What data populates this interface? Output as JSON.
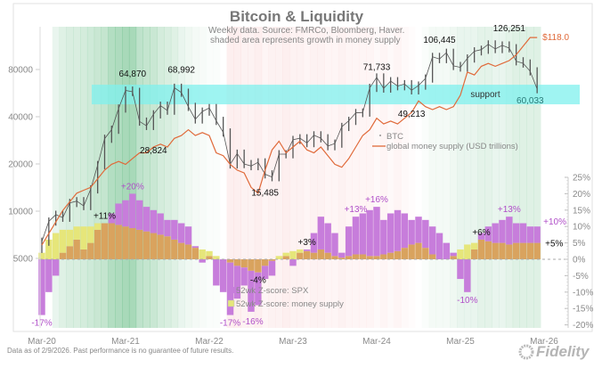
{
  "chart_data": {
    "type": "bar+line",
    "title": "Bitcoin & Liquidity",
    "subtitle": [
      "Weekly data.  Source: FMRCo, Bloomberg, Haver.",
      "shaded area represents growth in money supply"
    ],
    "footer": "Data as of 2/9/2026. Past performance is no guarantee of future results.",
    "logo": "Fidelity INVESTMENTS",
    "x_start": "2020-03",
    "x_ticks": [
      "Mar-20",
      "Mar-21",
      "Mar-22",
      "Mar-23",
      "Mar-24",
      "Mar-25",
      "Mar-26"
    ],
    "left_axis": {
      "scale": "log",
      "ticks": [
        "5000",
        "10000",
        "20000",
        "40000",
        "80000"
      ]
    },
    "right_axis": {
      "ticks": [
        "25%",
        "20%",
        "15%",
        "10%",
        "5%",
        "0%",
        "-5%",
        "-10%",
        "-15%",
        "-20%"
      ]
    },
    "support_band": {
      "label": "support",
      "range": [
        48000,
        64000
      ]
    },
    "legend_top": [
      {
        "name": "BTC",
        "color": "#777777"
      },
      {
        "name": "global money supply (USD trillions)",
        "color": "#e06a3a"
      }
    ],
    "legend_bottom": [
      {
        "name": "52wk Z-score: SPX",
        "color": "#c77ddb"
      },
      {
        "name": "52wk Z-score: money supply",
        "color": "#e4e47a"
      }
    ],
    "colors": {
      "btc": "#555555",
      "money": "#e06a3a",
      "spx": "#c77ddb",
      "ms": "#e6e67a",
      "overlap": "#d9a35e",
      "support": "#7ff0ee",
      "green": "#3aa860",
      "red": "#f08a8a"
    },
    "btc": [
      6400,
      8600,
      9500,
      9100,
      11300,
      11600,
      10800,
      13800,
      19700,
      29000,
      33100,
      45200,
      58800,
      57700,
      37300,
      35000,
      41500,
      47100,
      43800,
      61300,
      57000,
      46300,
      38500,
      43200,
      45500,
      37700,
      31800,
      19900,
      23300,
      20000,
      19400,
      20500,
      17200,
      16500,
      23100,
      23100,
      28500,
      29200,
      27200,
      30500,
      29200,
      26000,
      27000,
      34500,
      37700,
      42300,
      42600,
      61200,
      71300,
      60600,
      67500,
      62700,
      64600,
      59000,
      63300,
      70200,
      96400,
      93400,
      102400,
      84400,
      82500,
      94200,
      104600,
      107100,
      115800,
      108200,
      114000,
      109500,
      90400,
      87500,
      78000,
      60033
    ],
    "money_supply": [
      82,
      84,
      86,
      88,
      89.5,
      91,
      91.5,
      92,
      93.5,
      95,
      96,
      96.5,
      96,
      97,
      98,
      98,
      99,
      99.5,
      99,
      100.5,
      101,
      102,
      101,
      101.5,
      101,
      98,
      97.5,
      96,
      95,
      94.5,
      92,
      91,
      95,
      98.5,
      100,
      98,
      99,
      100,
      98.5,
      98,
      99,
      97.5,
      96,
      95.5,
      97,
      99,
      101,
      102,
      104,
      103,
      103.5,
      103,
      104,
      105,
      107,
      106,
      105.5,
      106,
      105.5,
      106,
      108,
      112,
      111.5,
      113,
      113.5,
      113,
      113.5,
      114,
      115,
      116.5,
      118,
      118
    ],
    "z_spx": [
      -17,
      -10,
      -5,
      2,
      4,
      6,
      3,
      5,
      9,
      11,
      14,
      17,
      18,
      20,
      18,
      16,
      15,
      14,
      12,
      12,
      11,
      10,
      4,
      -1,
      1,
      -8,
      -10,
      -17,
      -12,
      -8,
      -16,
      -14,
      -6,
      -5,
      0,
      1,
      -2,
      2,
      3,
      8,
      13,
      11,
      8,
      2,
      10,
      13,
      14,
      15,
      16,
      12,
      14,
      15,
      14,
      12,
      13,
      12,
      10,
      8,
      5,
      2,
      -6,
      -10,
      3,
      8,
      10,
      11,
      12,
      13,
      11,
      11,
      10,
      10
    ],
    "z_money": [
      2,
      6,
      8,
      9,
      9,
      10,
      10,
      10,
      11,
      11,
      11,
      10.5,
      10,
      9.5,
      9,
      8.5,
      8,
      7.5,
      7,
      6,
      5,
      4.5,
      3.5,
      3,
      2.5,
      1,
      0,
      -1,
      -2,
      -2.5,
      -3.5,
      -4,
      -2,
      -0.5,
      1,
      2,
      2.5,
      3,
      2.5,
      2,
      3,
      2,
      1,
      0.5,
      1,
      1.5,
      1.5,
      1,
      1,
      1.5,
      2,
      2.5,
      3.5,
      4.5,
      5,
      3.5,
      1.5,
      0,
      0,
      1,
      3,
      4.5,
      5,
      6,
      5.5,
      5,
      5,
      4.5,
      5,
      5,
      5,
      5
    ],
    "money_growth_shading": [
      0,
      0,
      0.2,
      0.3,
      0.35,
      0.35,
      0.4,
      0.45,
      0.5,
      0.55,
      0.7,
      0.75,
      0.8,
      0.8,
      0.6,
      0.55,
      0.5,
      0.4,
      0.35,
      0.3,
      0.2,
      0.15,
      0.1,
      0.08,
      0.05,
      0.05,
      0,
      -0.25,
      -0.25,
      -0.2,
      -0.2,
      -0.25,
      -0.15,
      -0.2,
      -0.2,
      -0.25,
      -0.2,
      -0.2,
      -0.15,
      -0.2,
      -0.2,
      -0.15,
      -0.15,
      -0.2,
      -0.15,
      -0.15,
      -0.15,
      -0.15,
      -0.1,
      -0.15,
      -0.1,
      -0.15,
      -0.1,
      -0.05,
      0,
      0.05,
      0.1,
      0.1,
      0.1,
      0.15,
      0.2,
      0.2,
      0.2,
      0.25,
      0.25,
      0.2,
      0.2,
      0.25,
      0.3,
      0.3,
      0.3,
      0.3
    ],
    "price_annotations": [
      {
        "text": "64,870",
        "date": "2021-04",
        "value": 64870,
        "pos": "above"
      },
      {
        "text": "28,824",
        "date": "2021-07",
        "value": 28824,
        "pos": "below"
      },
      {
        "text": "68,992",
        "date": "2021-11",
        "value": 68992,
        "pos": "above"
      },
      {
        "text": "15,485",
        "date": "2022-11",
        "value": 15485,
        "pos": "below"
      },
      {
        "text": "71,733",
        "date": "2024-03",
        "value": 71733,
        "pos": "above"
      },
      {
        "text": "49,213",
        "date": "2024-08",
        "value": 49213,
        "pos": "below"
      },
      {
        "text": "106,445",
        "date": "2024-12",
        "value": 106445,
        "pos": "above"
      },
      {
        "text": "126,251",
        "date": "2025-10",
        "value": 126251,
        "pos": "above"
      },
      {
        "text": "60,033",
        "date": "2026-01",
        "value": 60033,
        "pos": "below"
      }
    ],
    "money_end_label": "$118.0",
    "z_annotations": [
      {
        "text": "-17%",
        "date": "2020-03",
        "value": -17,
        "pos": "below",
        "color": "#b04fc8"
      },
      {
        "text": "+11%",
        "date": "2020-12",
        "value": 11,
        "pos": "above",
        "color": "#111111"
      },
      {
        "text": "+20%",
        "date": "2021-04",
        "value": 20,
        "pos": "above",
        "color": "#b04fc8"
      },
      {
        "text": "-17%",
        "date": "2022-06",
        "value": -17,
        "pos": "below",
        "color": "#b04fc8"
      },
      {
        "text": "-4%",
        "date": "2022-10",
        "value": -4,
        "pos": "below",
        "color": "#111111"
      },
      {
        "text": "-16%",
        "date": "2022-09",
        "value": -16,
        "pos": "below2",
        "color": "#b04fc8"
      },
      {
        "text": "+3%",
        "date": "2023-05",
        "value": 3,
        "pos": "above",
        "color": "#111111"
      },
      {
        "text": "+13%",
        "date": "2023-12",
        "value": 13,
        "pos": "above",
        "color": "#b04fc8"
      },
      {
        "text": "+16%",
        "date": "2024-03",
        "value": 16,
        "pos": "above",
        "color": "#b04fc8"
      },
      {
        "text": "-10%",
        "date": "2025-04",
        "value": -10,
        "pos": "below",
        "color": "#b04fc8"
      },
      {
        "text": "+6%",
        "date": "2025-06",
        "value": 6,
        "pos": "above",
        "color": "#111111"
      },
      {
        "text": "+13%",
        "date": "2025-10",
        "value": 13,
        "pos": "above",
        "color": "#b04fc8"
      },
      {
        "text": "+10%",
        "date": "2026-02",
        "value": 10,
        "pos": "right-up",
        "color": "#b04fc8"
      },
      {
        "text": "+5%",
        "date": "2026-02",
        "value": 5,
        "pos": "right",
        "color": "#111111"
      }
    ]
  }
}
